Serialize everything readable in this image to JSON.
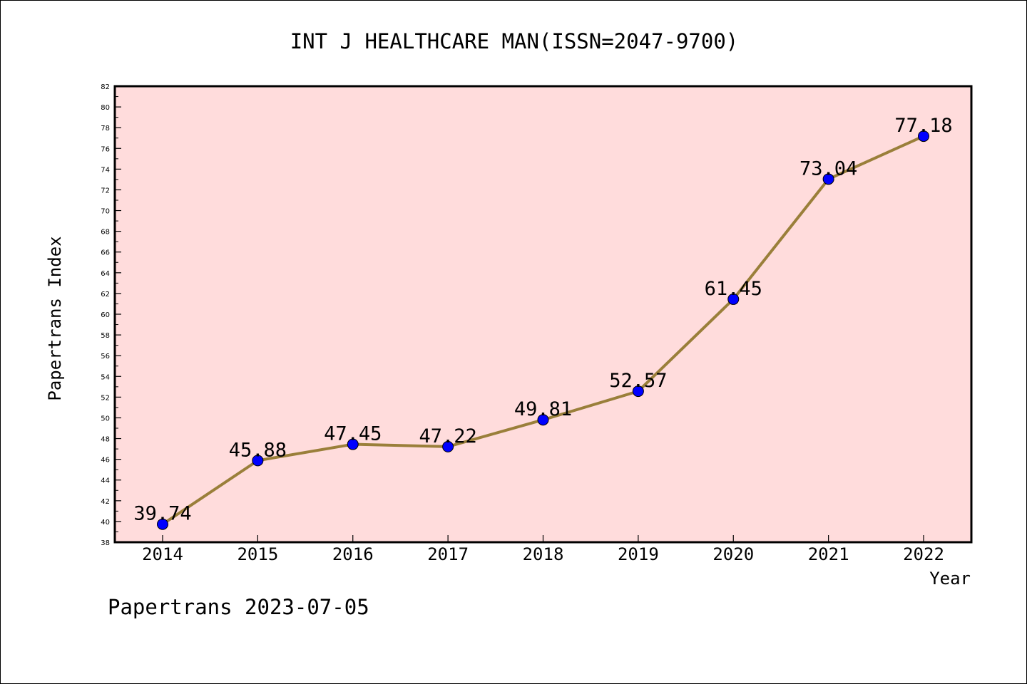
{
  "chart_data": {
    "type": "line",
    "title": "INT J HEALTHCARE MAN(ISSN=2047-9700)",
    "xlabel": "Year",
    "ylabel": "Papertrans Index",
    "categories": [
      "2014",
      "2015",
      "2016",
      "2017",
      "2018",
      "2019",
      "2020",
      "2021",
      "2022"
    ],
    "series": [
      {
        "values": [
          39.74,
          45.88,
          47.45,
          47.22,
          49.81,
          52.57,
          61.45,
          73.04,
          77.18
        ],
        "labels": [
          "39.74",
          "45.88",
          "47.45",
          "47.22",
          "49.81",
          "52.57",
          "61.45",
          "73.04",
          "77.18"
        ],
        "line_color": "#9a7f3a",
        "marker_color": "#0000ff"
      }
    ],
    "ylim": [
      38,
      82
    ],
    "ytick_step": 2,
    "grid": false,
    "plot_background": "#ffdcdc"
  },
  "footer": {
    "text": "Papertrans 2023-07-05"
  }
}
